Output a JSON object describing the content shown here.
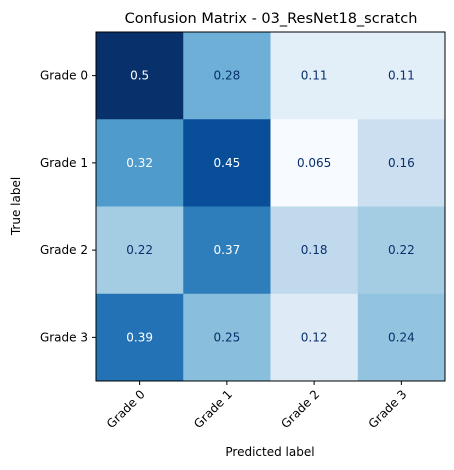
{
  "chart_data": {
    "type": "heatmap",
    "title": "Confusion Matrix - 03_ResNet18_scratch",
    "xlabel": "Predicted label",
    "ylabel": "True label",
    "x_categories": [
      "Grade 0",
      "Grade 1",
      "Grade 2",
      "Grade 3"
    ],
    "y_categories": [
      "Grade 0",
      "Grade 1",
      "Grade 2",
      "Grade 3"
    ],
    "values": [
      [
        0.5,
        0.28,
        0.11,
        0.11
      ],
      [
        0.32,
        0.45,
        0.065,
        0.16
      ],
      [
        0.22,
        0.37,
        0.18,
        0.22
      ],
      [
        0.39,
        0.25,
        0.12,
        0.24
      ]
    ],
    "value_labels": [
      [
        "0.5",
        "0.28",
        "0.11",
        "0.11"
      ],
      [
        "0.32",
        "0.45",
        "0.065",
        "0.16"
      ],
      [
        "0.22",
        "0.37",
        "0.18",
        "0.22"
      ],
      [
        "0.39",
        "0.25",
        "0.12",
        "0.24"
      ]
    ],
    "colormap": "Blues",
    "grid": false,
    "legend": "none"
  }
}
